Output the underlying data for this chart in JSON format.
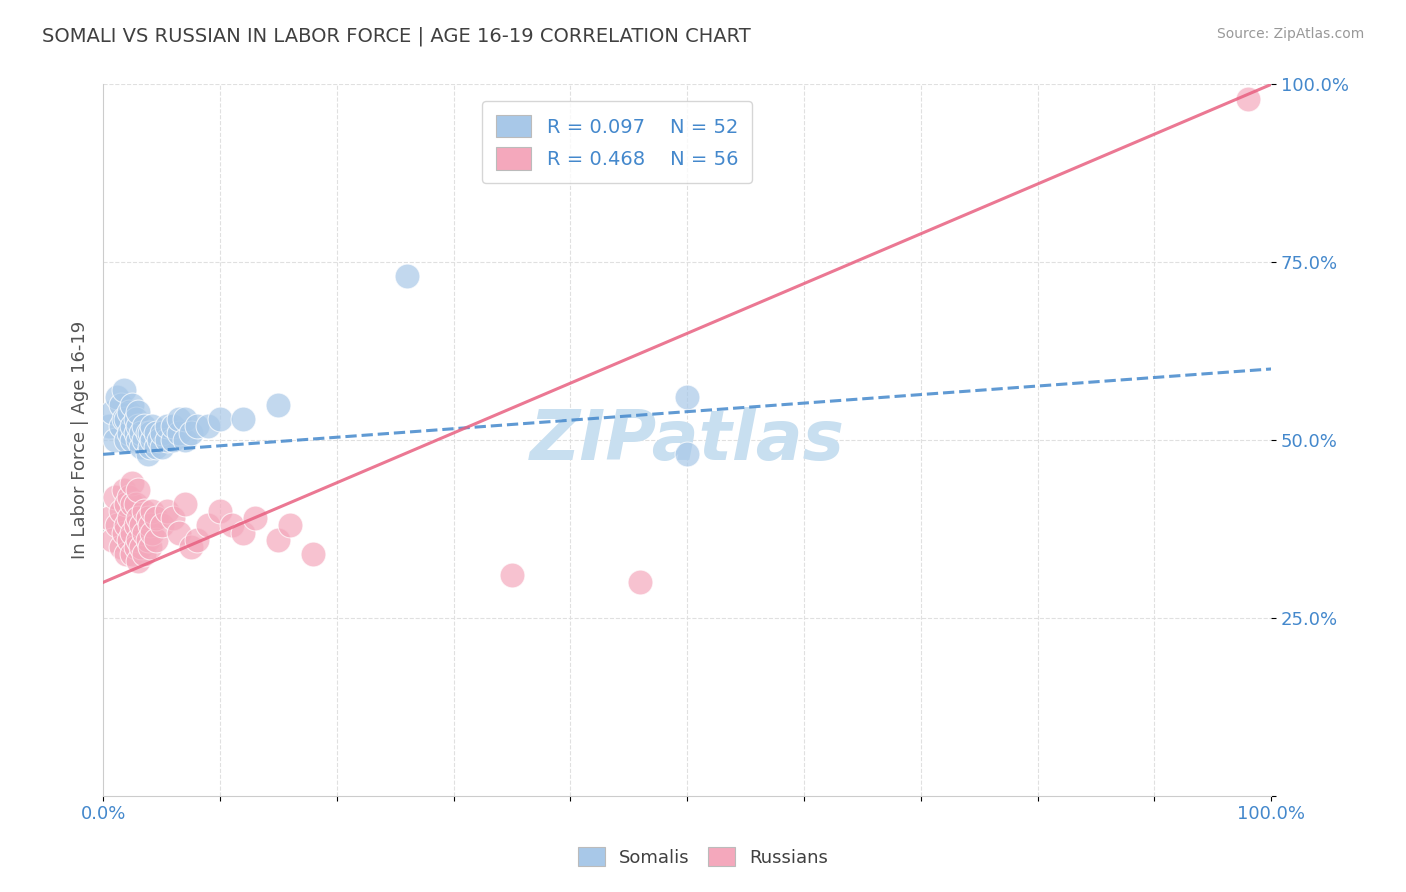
{
  "title": "SOMALI VS RUSSIAN IN LABOR FORCE | AGE 16-19 CORRELATION CHART",
  "source": "Source: ZipAtlas.com",
  "ylabel": "In Labor Force | Age 16-19",
  "xlim": [
    0.0,
    1.0
  ],
  "ylim": [
    0.0,
    1.0
  ],
  "somali_R": 0.097,
  "somali_N": 52,
  "russian_R": 0.468,
  "russian_N": 56,
  "somali_color": "#a8c8e8",
  "russian_color": "#f4a8bc",
  "somali_line_color": "#4488cc",
  "russian_line_color": "#e86080",
  "background_color": "#ffffff",
  "grid_color": "#e0e0e0",
  "title_color": "#404040",
  "watermark": "ZIPatlas",
  "watermark_color": "#c8dff0",
  "somali_points": [
    [
      0.005,
      0.52
    ],
    [
      0.008,
      0.54
    ],
    [
      0.01,
      0.5
    ],
    [
      0.012,
      0.56
    ],
    [
      0.015,
      0.52
    ],
    [
      0.015,
      0.55
    ],
    [
      0.018,
      0.53
    ],
    [
      0.018,
      0.57
    ],
    [
      0.02,
      0.5
    ],
    [
      0.02,
      0.53
    ],
    [
      0.022,
      0.51
    ],
    [
      0.022,
      0.54
    ],
    [
      0.025,
      0.5
    ],
    [
      0.025,
      0.52
    ],
    [
      0.025,
      0.55
    ],
    [
      0.028,
      0.51
    ],
    [
      0.028,
      0.53
    ],
    [
      0.03,
      0.5
    ],
    [
      0.03,
      0.52
    ],
    [
      0.03,
      0.54
    ],
    [
      0.032,
      0.49
    ],
    [
      0.032,
      0.51
    ],
    [
      0.035,
      0.5
    ],
    [
      0.035,
      0.52
    ],
    [
      0.038,
      0.48
    ],
    [
      0.038,
      0.51
    ],
    [
      0.04,
      0.49
    ],
    [
      0.04,
      0.51
    ],
    [
      0.042,
      0.5
    ],
    [
      0.042,
      0.52
    ],
    [
      0.045,
      0.49
    ],
    [
      0.045,
      0.51
    ],
    [
      0.048,
      0.5
    ],
    [
      0.05,
      0.49
    ],
    [
      0.05,
      0.51
    ],
    [
      0.055,
      0.5
    ],
    [
      0.055,
      0.52
    ],
    [
      0.06,
      0.5
    ],
    [
      0.06,
      0.52
    ],
    [
      0.065,
      0.51
    ],
    [
      0.065,
      0.53
    ],
    [
      0.07,
      0.5
    ],
    [
      0.07,
      0.53
    ],
    [
      0.075,
      0.51
    ],
    [
      0.08,
      0.52
    ],
    [
      0.09,
      0.52
    ],
    [
      0.1,
      0.53
    ],
    [
      0.12,
      0.53
    ],
    [
      0.15,
      0.55
    ],
    [
      0.26,
      0.73
    ],
    [
      0.5,
      0.56
    ],
    [
      0.5,
      0.48
    ]
  ],
  "russian_points": [
    [
      0.005,
      0.39
    ],
    [
      0.008,
      0.36
    ],
    [
      0.01,
      0.42
    ],
    [
      0.012,
      0.38
    ],
    [
      0.015,
      0.35
    ],
    [
      0.015,
      0.4
    ],
    [
      0.018,
      0.37
    ],
    [
      0.018,
      0.43
    ],
    [
      0.02,
      0.34
    ],
    [
      0.02,
      0.38
    ],
    [
      0.02,
      0.41
    ],
    [
      0.022,
      0.36
    ],
    [
      0.022,
      0.39
    ],
    [
      0.022,
      0.42
    ],
    [
      0.025,
      0.34
    ],
    [
      0.025,
      0.37
    ],
    [
      0.025,
      0.41
    ],
    [
      0.025,
      0.44
    ],
    [
      0.028,
      0.35
    ],
    [
      0.028,
      0.38
    ],
    [
      0.028,
      0.41
    ],
    [
      0.03,
      0.33
    ],
    [
      0.03,
      0.36
    ],
    [
      0.03,
      0.39
    ],
    [
      0.03,
      0.43
    ],
    [
      0.032,
      0.35
    ],
    [
      0.032,
      0.38
    ],
    [
      0.035,
      0.34
    ],
    [
      0.035,
      0.37
    ],
    [
      0.035,
      0.4
    ],
    [
      0.038,
      0.36
    ],
    [
      0.038,
      0.39
    ],
    [
      0.04,
      0.35
    ],
    [
      0.04,
      0.38
    ],
    [
      0.042,
      0.37
    ],
    [
      0.042,
      0.4
    ],
    [
      0.045,
      0.36
    ],
    [
      0.045,
      0.39
    ],
    [
      0.05,
      0.38
    ],
    [
      0.055,
      0.4
    ],
    [
      0.06,
      0.39
    ],
    [
      0.065,
      0.37
    ],
    [
      0.07,
      0.41
    ],
    [
      0.075,
      0.35
    ],
    [
      0.08,
      0.36
    ],
    [
      0.09,
      0.38
    ],
    [
      0.1,
      0.4
    ],
    [
      0.11,
      0.38
    ],
    [
      0.12,
      0.37
    ],
    [
      0.13,
      0.39
    ],
    [
      0.15,
      0.36
    ],
    [
      0.16,
      0.38
    ],
    [
      0.18,
      0.34
    ],
    [
      0.35,
      0.31
    ],
    [
      0.46,
      0.3
    ],
    [
      0.98,
      0.98
    ]
  ],
  "somali_line": {
    "x0": 0.0,
    "y0": 0.48,
    "x1": 1.0,
    "y1": 0.6
  },
  "russian_line": {
    "x0": 0.0,
    "y0": 0.3,
    "x1": 1.0,
    "y1": 1.0
  }
}
